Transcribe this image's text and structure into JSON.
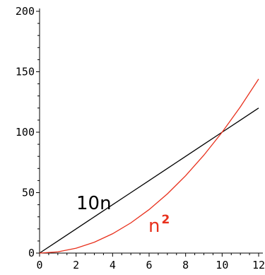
{
  "chart_data": {
    "type": "line",
    "x": [
      0,
      1,
      2,
      3,
      4,
      5,
      6,
      7,
      8,
      9,
      10,
      11,
      12
    ],
    "series": [
      {
        "name": "10n",
        "color": "#000000",
        "values": [
          0,
          10,
          20,
          30,
          40,
          50,
          60,
          70,
          80,
          90,
          100,
          110,
          120
        ]
      },
      {
        "name": "n",
        "exponent": "2",
        "color": "#e8301c",
        "values": [
          0,
          1,
          4,
          9,
          16,
          25,
          36,
          49,
          64,
          81,
          100,
          121,
          144
        ]
      }
    ],
    "xlim": [
      0,
      12
    ],
    "ylim": [
      0,
      200
    ],
    "x_ticks": [
      "0",
      "2",
      "4",
      "6",
      "8",
      "10",
      "12"
    ],
    "y_ticks": [
      "0",
      "50",
      "100",
      "150",
      "200"
    ],
    "grid": false,
    "legend": "inline labels"
  }
}
